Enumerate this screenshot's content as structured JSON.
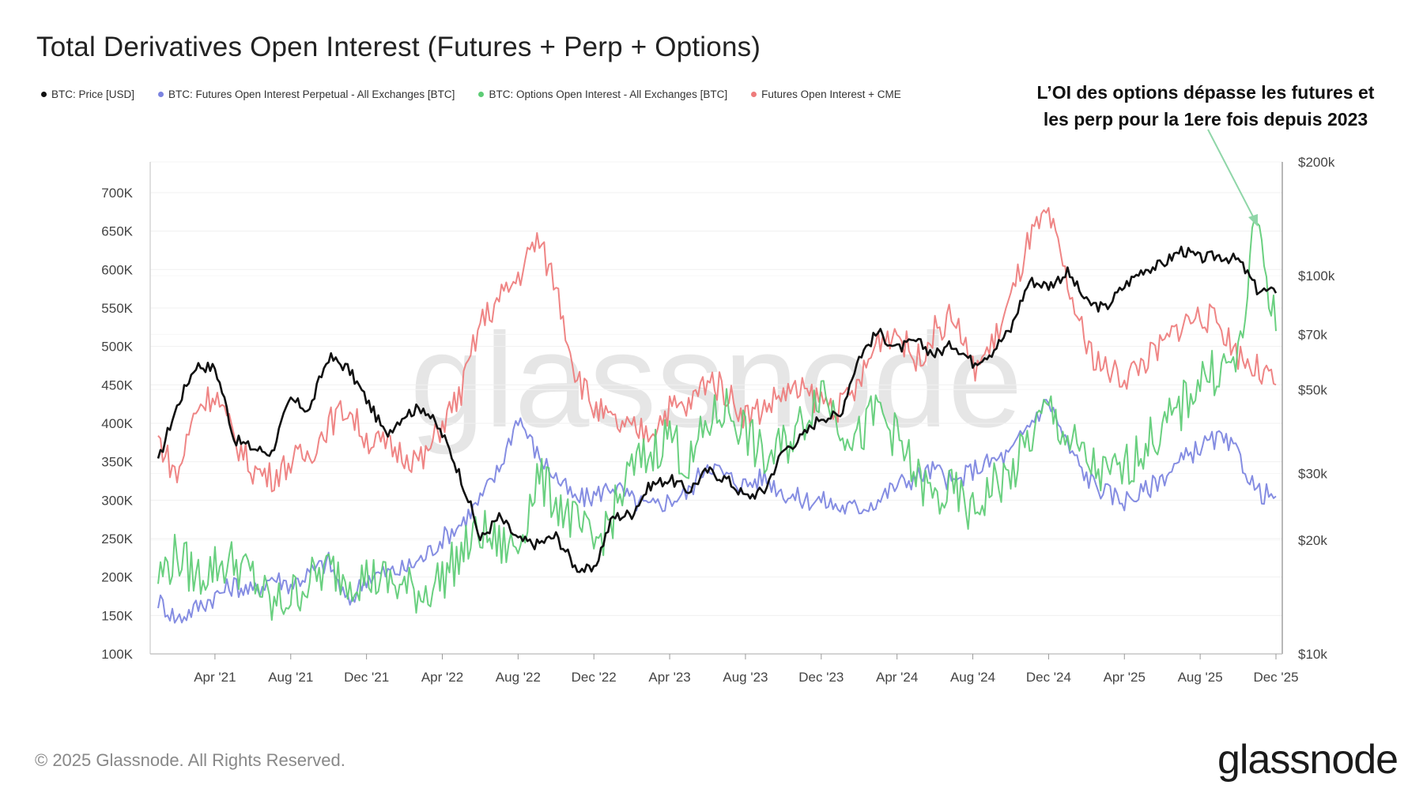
{
  "title": "Total Derivatives Open Interest (Futures + Perp + Options)",
  "legend": [
    {
      "label": "BTC: Price [USD]",
      "color": "#111111"
    },
    {
      "label": "BTC: Futures Open Interest Perpetual - All Exchanges [BTC]",
      "color": "#7b83e0"
    },
    {
      "label": "BTC: Options Open Interest - All Exchanges [BTC]",
      "color": "#5dcc75"
    },
    {
      "label": "Futures Open Interest + CME",
      "color": "#ee7b7b"
    }
  ],
  "annotation": {
    "line1": "L’OI des options dépasse les futures et",
    "line2": "les perp pour la 1ere fois depuis 2023"
  },
  "watermark": "glassnode",
  "footer": "© 2025 Glassnode. All Rights Reserved.",
  "brand": "glassnode",
  "chart_data": {
    "type": "line",
    "title": "Total Derivatives Open Interest (Futures + Perp + Options)",
    "x": [
      "Jan '21",
      "Feb '21",
      "Mar '21",
      "Apr '21",
      "May '21",
      "Jun '21",
      "Jul '21",
      "Aug '21",
      "Sep '21",
      "Oct '21",
      "Nov '21",
      "Dec '21",
      "Jan '22",
      "Feb '22",
      "Mar '22",
      "Apr '22",
      "May '22",
      "Jun '22",
      "Jul '22",
      "Aug '22",
      "Sep '22",
      "Oct '22",
      "Nov '22",
      "Dec '22",
      "Jan '23",
      "Feb '23",
      "Mar '23",
      "Apr '23",
      "May '23",
      "Jun '23",
      "Jul '23",
      "Aug '23",
      "Sep '23",
      "Oct '23",
      "Nov '23",
      "Dec '23",
      "Jan '24",
      "Feb '24",
      "Mar '24",
      "Apr '24",
      "May '24",
      "Jun '24",
      "Jul '24",
      "Aug '24",
      "Sep '24",
      "Oct '24",
      "Nov '24",
      "Dec '24",
      "Jan '25",
      "Feb '25",
      "Mar '25",
      "Apr '25",
      "May '25",
      "Jun '25",
      "Jul '25",
      "Aug '25",
      "Sep '25",
      "Oct '25",
      "Nov '25",
      "Dec '25"
    ],
    "x_ticks": [
      "Apr '21",
      "Aug '21",
      "Dec '21",
      "Apr '22",
      "Aug '22",
      "Dec '22",
      "Apr '23",
      "Aug '23",
      "Dec '23",
      "Apr '24",
      "Aug '24",
      "Dec '24",
      "Apr '25",
      "Aug '25",
      "Dec '25"
    ],
    "y_left": {
      "ticks": [
        "100K",
        "150K",
        "200K",
        "250K",
        "300K",
        "350K",
        "400K",
        "450K",
        "500K",
        "550K",
        "600K",
        "650K",
        "700K"
      ],
      "ylim": [
        100000,
        740000
      ]
    },
    "y_right": {
      "ticks": [
        "$10k",
        "$20k",
        "$30k",
        "$50k",
        "$70k",
        "$100k",
        "$200k"
      ],
      "scale": "log",
      "ylim": [
        10000,
        200000
      ]
    },
    "series": [
      {
        "name": "BTC: Price [USD]",
        "axis": "right",
        "color": "#111111",
        "values": [
          32000,
          45000,
          58000,
          57000,
          37000,
          35000,
          34000,
          47000,
          44000,
          61000,
          57000,
          47000,
          38000,
          43000,
          45000,
          38000,
          29000,
          20000,
          23000,
          20000,
          19500,
          20500,
          17000,
          16500,
          23000,
          23500,
          28000,
          29000,
          27000,
          30500,
          29000,
          26000,
          27000,
          34500,
          37500,
          42500,
          42500,
          61000,
          71000,
          64000,
          67000,
          62000,
          66000,
          59000,
          63000,
          72000,
          97000,
          94000,
          102000,
          85000,
          82000,
          94000,
          104000,
          107000,
          117000,
          111000,
          113000,
          110000,
          92000,
          90000
        ]
      },
      {
        "name": "BTC: Futures Open Interest Perpetual - All Exchanges [BTC]",
        "axis": "left",
        "color": "#7b83e0",
        "values": [
          170000,
          145000,
          160000,
          175000,
          190000,
          180000,
          200000,
          190000,
          205000,
          220000,
          165000,
          200000,
          205000,
          210000,
          225000,
          250000,
          270000,
          300000,
          340000,
          410000,
          360000,
          330000,
          300000,
          305000,
          320000,
          300000,
          290000,
          300000,
          310000,
          350000,
          330000,
          320000,
          330000,
          310000,
          300000,
          300000,
          290000,
          290000,
          300000,
          320000,
          330000,
          340000,
          320000,
          340000,
          350000,
          360000,
          400000,
          430000,
          370000,
          330000,
          310000,
          300000,
          310000,
          330000,
          350000,
          370000,
          380000,
          360000,
          310000,
          305000
        ]
      },
      {
        "name": "BTC: Options Open Interest - All Exchanges [BTC]",
        "axis": "left",
        "color": "#5dcc75",
        "values": [
          200000,
          230000,
          200000,
          215000,
          220000,
          200000,
          160000,
          175000,
          195000,
          210000,
          200000,
          200000,
          195000,
          185000,
          180000,
          200000,
          230000,
          260000,
          240000,
          240000,
          330000,
          300000,
          270000,
          240000,
          280000,
          340000,
          360000,
          390000,
          340000,
          400000,
          420000,
          390000,
          350000,
          370000,
          400000,
          450000,
          400000,
          380000,
          420000,
          380000,
          330000,
          300000,
          310000,
          280000,
          320000,
          330000,
          380000,
          420000,
          380000,
          350000,
          330000,
          340000,
          370000,
          390000,
          420000,
          460000,
          470000,
          480000,
          670000,
          520000
        ]
      },
      {
        "name": "Futures Open Interest + CME",
        "axis": "left",
        "color": "#ee7b7b",
        "values": [
          380000,
          330000,
          420000,
          440000,
          380000,
          340000,
          330000,
          350000,
          360000,
          400000,
          420000,
          380000,
          370000,
          360000,
          350000,
          400000,
          440000,
          530000,
          560000,
          590000,
          640000,
          580000,
          470000,
          420000,
          400000,
          390000,
          390000,
          420000,
          420000,
          460000,
          440000,
          410000,
          420000,
          440000,
          440000,
          430000,
          420000,
          450000,
          510000,
          520000,
          480000,
          520000,
          540000,
          470000,
          500000,
          560000,
          640000,
          670000,
          580000,
          500000,
          470000,
          460000,
          480000,
          500000,
          530000,
          540000,
          530000,
          490000,
          470000,
          450000
        ]
      }
    ]
  }
}
